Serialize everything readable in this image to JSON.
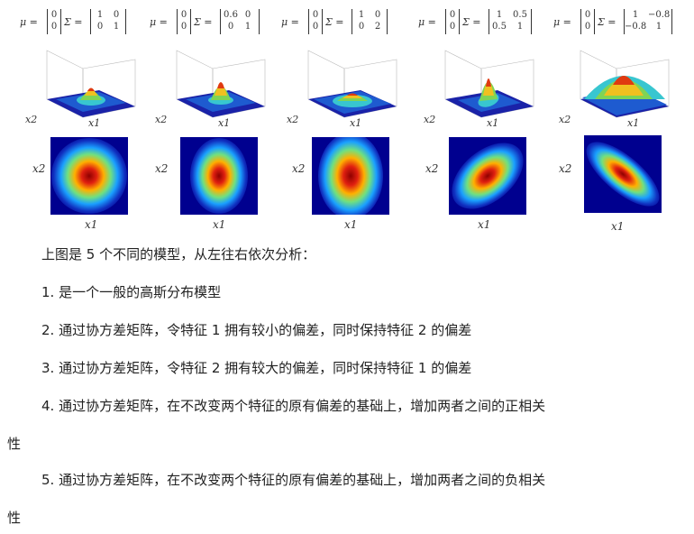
{
  "figure": {
    "panels": [
      {
        "mu": [
          "0",
          "0"
        ],
        "sigma": [
          [
            "1",
            "0"
          ],
          [
            "0",
            "1"
          ]
        ],
        "xlabel": "x1",
        "ylabel": "x2"
      },
      {
        "mu": [
          "0",
          "0"
        ],
        "sigma": [
          [
            "0.6",
            "0"
          ],
          [
            "0",
            "1"
          ]
        ],
        "xlabel": "x1",
        "ylabel": "x2"
      },
      {
        "mu": [
          "0",
          "0"
        ],
        "sigma": [
          [
            "1",
            "0"
          ],
          [
            "0",
            "2"
          ]
        ],
        "xlabel": "x1",
        "ylabel": "x2"
      },
      {
        "mu": [
          "0",
          "0"
        ],
        "sigma": [
          [
            "1",
            "0.5"
          ],
          [
            "0.5",
            "1"
          ]
        ],
        "xlabel": "x1",
        "ylabel": "x2"
      },
      {
        "mu": [
          "0",
          "0"
        ],
        "sigma": [
          [
            "1",
            "−0.8"
          ],
          [
            "−0.8",
            "1"
          ]
        ],
        "xlabel": "x1",
        "ylabel": "x2"
      }
    ],
    "mu_symbol": "μ =",
    "sigma_symbol": "Σ ="
  },
  "text": {
    "intro": "上图是 5 个不同的模型，从左往右依次分析：",
    "item1": "1.  是一个一般的高斯分布模型",
    "item2": "2.  通过协方差矩阵，令特征 1 拥有较小的偏差，同时保持特征 2 的偏差",
    "item3": "3.  通过协方差矩阵，令特征 2 拥有较大的偏差，同时保持特征 1 的偏差",
    "item4a": "4.  通过协方差矩阵，在不改变两个特征的原有偏差的基础上，增加两者之间的正相关",
    "item4b": "性",
    "item5a": "5.  通过协方差矩阵，在不改变两个特征的原有偏差的基础上，增加两者之间的负相关",
    "item5b": "性"
  },
  "colors": {
    "low": "#00008f",
    "high": "#8f0000"
  }
}
